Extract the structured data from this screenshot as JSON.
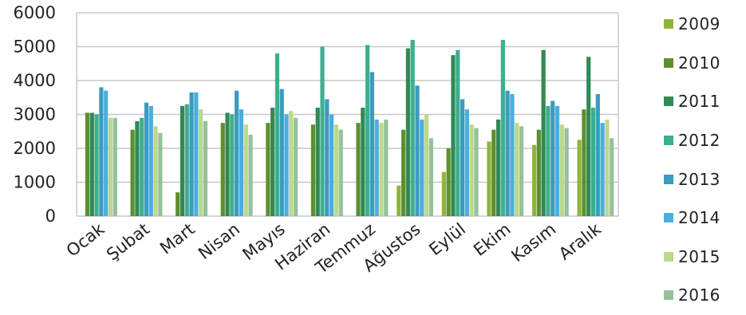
{
  "chart_data": {
    "type": "bar",
    "categories": [
      "Ocak",
      "Şubat",
      "Mart",
      "Nisan",
      "Mayıs",
      "Haziran",
      "Temmuz",
      "Ağustos",
      "Eylül",
      "Ekim",
      "Kasım",
      "Aralık"
    ],
    "series": [
      {
        "name": "2009",
        "color": "#8fb43a",
        "values": [
          0,
          0,
          0,
          0,
          0,
          0,
          0,
          900,
          1300,
          2200,
          2100,
          2250
        ]
      },
      {
        "name": "2010",
        "color": "#5e8f2f",
        "values": [
          3050,
          2550,
          700,
          2750,
          2750,
          2700,
          2750,
          2550,
          2000,
          2550,
          2550,
          3150
        ]
      },
      {
        "name": "2011",
        "color": "#2f8a55",
        "values": [
          3050,
          2800,
          3250,
          3050,
          3200,
          3200,
          3200,
          4950,
          4750,
          2850,
          4900,
          4700
        ]
      },
      {
        "name": "2012",
        "color": "#3fae8e",
        "values": [
          3000,
          2900,
          3300,
          3000,
          4800,
          5000,
          5050,
          5200,
          4900,
          5200,
          3250,
          3200
        ]
      },
      {
        "name": "2013",
        "color": "#3c9bbf",
        "values": [
          3800,
          3350,
          3650,
          3700,
          3750,
          3450,
          4250,
          3850,
          3450,
          3700,
          3400,
          3600
        ]
      },
      {
        "name": "2014",
        "color": "#4aaee0",
        "values": [
          3700,
          3250,
          3650,
          3150,
          3000,
          3000,
          2850,
          2850,
          3150,
          3600,
          3250,
          2750
        ]
      },
      {
        "name": "2015",
        "color": "#bcd98c",
        "values": [
          2900,
          2650,
          3150,
          2700,
          3100,
          2700,
          2750,
          3000,
          2700,
          2750,
          2700,
          2850
        ]
      },
      {
        "name": "2016",
        "color": "#95c29a",
        "values": [
          2900,
          2450,
          2800,
          2400,
          2900,
          2550,
          2850,
          2300,
          2600,
          2650,
          2600,
          2300
        ]
      }
    ],
    "ylim": [
      0,
      6000
    ],
    "yticks": [
      0,
      1000,
      2000,
      3000,
      4000,
      5000,
      6000
    ],
    "grid": true,
    "legend_position": "right"
  }
}
